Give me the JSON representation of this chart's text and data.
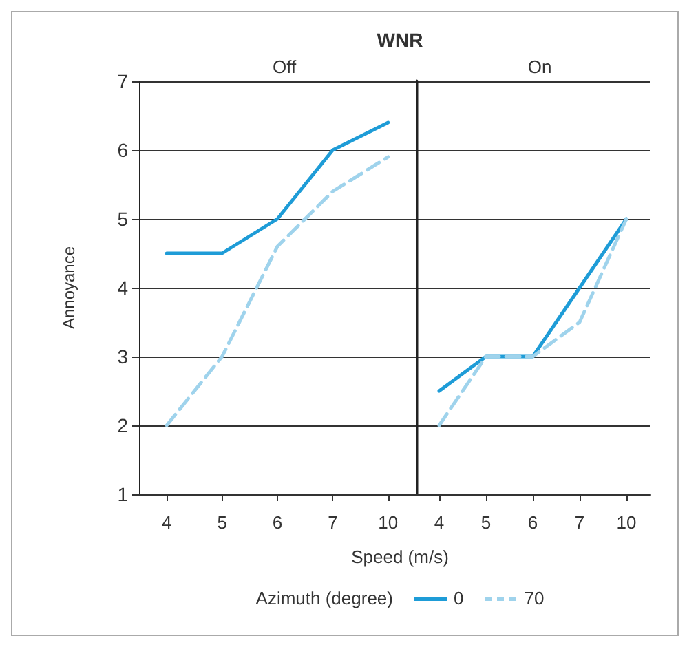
{
  "chart_data": [
    {
      "type": "line",
      "title": "WNR",
      "subtitle": "Off",
      "ylabel": "Annoyance",
      "xlabel": "Speed (m/s)",
      "legend_title": "Azimuth (degree)",
      "legend": "bottom",
      "categories": [
        "4",
        "5",
        "6",
        "7",
        "10"
      ],
      "ylim": [
        1,
        7
      ],
      "yticks": [
        1,
        2,
        3,
        4,
        5,
        6,
        7
      ],
      "grid": "y",
      "marker": "none",
      "series": [
        {
          "name": "0",
          "color": "#1e9cd7",
          "line_style": "solid",
          "values": [
            4.5,
            4.5,
            5,
            6,
            6.4
          ]
        },
        {
          "name": "70",
          "color": "#9fd3ec",
          "line_style": "dashed",
          "values": [
            2,
            3,
            4.6,
            5.4,
            5.9
          ]
        }
      ]
    },
    {
      "type": "line",
      "subtitle": "On",
      "categories": [
        "4",
        "5",
        "6",
        "7",
        "10"
      ],
      "ylim": [
        1,
        7
      ],
      "yticks": [
        1,
        2,
        3,
        4,
        5,
        6,
        7
      ],
      "grid": "y",
      "marker": "none",
      "tick_labels": "x",
      "series": [
        {
          "name": "0",
          "color": "#1e9cd7",
          "line_style": "solid",
          "values": [
            2.5,
            3,
            3,
            4,
            5
          ]
        },
        {
          "name": "70",
          "color": "#9fd3ec",
          "line_style": "dashed",
          "values": [
            2,
            3,
            3,
            3.5,
            5
          ]
        }
      ]
    }
  ]
}
